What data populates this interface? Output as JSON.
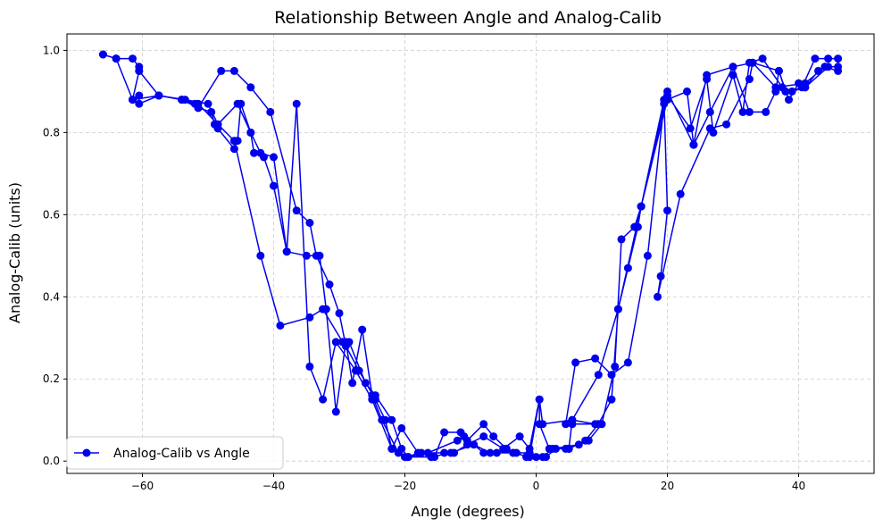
{
  "chart_data": {
    "type": "line",
    "title": "Relationship Between Angle and Analog-Calib",
    "xlabel": "Angle (degrees)",
    "ylabel": "Analog-Calib (units)",
    "xlim": [
      -71.5,
      51.5
    ],
    "ylim": [
      -0.03,
      1.04
    ],
    "x_ticks": [
      -60,
      -40,
      -20,
      0,
      20,
      40
    ],
    "x_tick_labels": [
      "−60",
      "−40",
      "−20",
      "0",
      "20",
      "40"
    ],
    "y_ticks": [
      0.0,
      0.2,
      0.4,
      0.6,
      0.8,
      1.0
    ],
    "y_tick_labels": [
      "0.0",
      "0.2",
      "0.4",
      "0.6",
      "0.8",
      "1.0"
    ],
    "grid": true,
    "legend_position": "lower-left",
    "colors": {
      "series": "#0000ee",
      "grid": "#cccccc",
      "axis": "#000000"
    },
    "series": [
      {
        "name": "Analog-Calib vs Angle",
        "marker": "circle",
        "points": [
          [
            -66,
            0.99
          ],
          [
            -64,
            0.98
          ],
          [
            -61.5,
            0.98
          ],
          [
            -60.5,
            0.96
          ],
          [
            -60.5,
            0.95
          ],
          [
            -57.5,
            0.89
          ],
          [
            -54,
            0.88
          ],
          [
            -52,
            0.87
          ],
          [
            -51.5,
            0.86
          ],
          [
            -49.5,
            0.85
          ],
          [
            -49,
            0.82
          ],
          [
            -48.5,
            0.81
          ],
          [
            -46,
            0.76
          ],
          [
            -45.5,
            0.78
          ],
          [
            -45,
            0.87
          ],
          [
            -43.5,
            0.8
          ],
          [
            -43,
            0.75
          ],
          [
            -41.5,
            0.74
          ],
          [
            -40,
            0.67
          ],
          [
            -38,
            0.51
          ],
          [
            -35,
            0.5
          ],
          [
            -33,
            0.5
          ],
          [
            -32,
            0.37
          ],
          [
            -30.5,
            0.12
          ],
          [
            -29,
            0.29
          ],
          [
            -28,
            0.19
          ],
          [
            -26.5,
            0.32
          ],
          [
            -25,
            0.16
          ],
          [
            -23.5,
            0.1
          ],
          [
            -21,
            0.02
          ],
          [
            -20,
            0.01
          ],
          [
            -17.5,
            0.02
          ],
          [
            -15.5,
            0.01
          ],
          [
            -14,
            0.07
          ],
          [
            -11.5,
            0.07
          ],
          [
            -10.5,
            0.05
          ],
          [
            -8,
            0.09
          ],
          [
            -6.5,
            0.06
          ],
          [
            -4.5,
            0.03
          ],
          [
            -3,
            0.02
          ],
          [
            -1.5,
            0.01
          ],
          [
            0,
            0.01
          ],
          [
            1.5,
            0.01
          ],
          [
            3,
            0.03
          ],
          [
            5,
            0.03
          ],
          [
            7.5,
            0.05
          ],
          [
            9.5,
            0.09
          ],
          [
            11.5,
            0.15
          ],
          [
            12.5,
            0.37
          ],
          [
            14,
            0.47
          ],
          [
            15.5,
            0.57
          ],
          [
            16,
            0.62
          ],
          [
            20,
            0.88
          ],
          [
            23,
            0.9
          ],
          [
            24,
            0.77
          ],
          [
            26,
            0.94
          ],
          [
            30,
            0.96
          ],
          [
            32.5,
            0.85
          ],
          [
            35,
            0.85
          ],
          [
            36.5,
            0.9
          ],
          [
            37,
            0.95
          ],
          [
            38.5,
            0.88
          ],
          [
            40,
            0.92
          ],
          [
            40.5,
            0.91
          ],
          [
            42.5,
            0.98
          ],
          [
            44.5,
            0.98
          ],
          [
            46,
            0.98
          ],
          [
            46,
            0.95
          ],
          [
            44,
            0.96
          ],
          [
            43,
            0.95
          ],
          [
            41,
            0.91
          ],
          [
            39,
            0.9
          ],
          [
            37.5,
            0.91
          ],
          [
            34.5,
            0.98
          ],
          [
            32.5,
            0.97
          ],
          [
            31.5,
            0.85
          ],
          [
            30,
            0.94
          ],
          [
            27,
            0.8
          ],
          [
            26,
            0.93
          ],
          [
            23.5,
            0.81
          ],
          [
            20,
            0.89
          ],
          [
            19.5,
            0.87
          ],
          [
            17,
            0.5
          ],
          [
            14,
            0.24
          ],
          [
            11.5,
            0.21
          ],
          [
            9,
            0.25
          ],
          [
            6,
            0.24
          ],
          [
            4.5,
            0.09
          ],
          [
            5.5,
            0.09
          ],
          [
            9,
            0.09
          ],
          [
            5.5,
            0.1
          ],
          [
            5,
            0.03
          ],
          [
            4.5,
            0.03
          ],
          [
            2,
            0.03
          ],
          [
            0.5,
            0.09
          ],
          [
            0.5,
            0.15
          ],
          [
            -1,
            0.03
          ],
          [
            -2.5,
            0.06
          ],
          [
            -5,
            0.03
          ],
          [
            -8,
            0.06
          ],
          [
            -10.5,
            0.04
          ],
          [
            -12.5,
            0.02
          ],
          [
            -14,
            0.02
          ],
          [
            -18,
            0.02
          ],
          [
            -20.5,
            0.08
          ],
          [
            -22,
            0.03
          ],
          [
            -23,
            0.1
          ],
          [
            -24.5,
            0.15
          ],
          [
            -27,
            0.22
          ],
          [
            -29,
            0.28
          ],
          [
            -30,
            0.36
          ],
          [
            -31.5,
            0.43
          ],
          [
            -33.5,
            0.5
          ],
          [
            -34.5,
            0.58
          ],
          [
            -36.5,
            0.61
          ],
          [
            -40.5,
            0.85
          ],
          [
            -43.5,
            0.91
          ],
          [
            -46,
            0.95
          ],
          [
            -48,
            0.95
          ],
          [
            -51.5,
            0.86
          ],
          [
            -54,
            0.88
          ],
          [
            -57.5,
            0.89
          ],
          [
            -61.5,
            0.88
          ],
          [
            -60.5,
            0.89
          ],
          [
            -60.5,
            0.87
          ],
          [
            -57.5,
            0.89
          ],
          [
            -53.5,
            0.88
          ],
          [
            -50,
            0.87
          ],
          [
            -48.5,
            0.82
          ],
          [
            -46,
            0.78
          ],
          [
            -42,
            0.5
          ],
          [
            -39,
            0.33
          ],
          [
            -34.5,
            0.35
          ],
          [
            -32.5,
            0.37
          ],
          [
            -29.5,
            0.29
          ],
          [
            -28.5,
            0.29
          ],
          [
            -26,
            0.19
          ],
          [
            -24.5,
            0.16
          ],
          [
            -22,
            0.1
          ],
          [
            -20.5,
            0.03
          ],
          [
            -19.5,
            0.01
          ],
          [
            -16.5,
            0.02
          ],
          [
            -12,
            0.05
          ],
          [
            -11,
            0.06
          ],
          [
            -8,
            0.02
          ],
          [
            -6,
            0.02
          ],
          [
            -3.5,
            0.02
          ],
          [
            -1,
            0.02
          ],
          [
            1,
            0.01
          ],
          [
            2.5,
            0.03
          ],
          [
            6.5,
            0.04
          ],
          [
            8,
            0.05
          ],
          [
            10,
            0.09
          ],
          [
            12,
            0.23
          ],
          [
            13,
            0.54
          ],
          [
            15,
            0.57
          ],
          [
            16,
            0.62
          ],
          [
            19.5,
            0.88
          ],
          [
            20,
            0.61
          ],
          [
            19,
            0.45
          ],
          [
            18.5,
            0.4
          ],
          [
            22,
            0.65
          ],
          [
            26.5,
            0.81
          ],
          [
            29,
            0.82
          ],
          [
            32.5,
            0.93
          ],
          [
            33,
            0.97
          ],
          [
            37,
            0.95
          ],
          [
            38,
            0.9
          ],
          [
            41,
            0.91
          ],
          [
            44.5,
            0.96
          ],
          [
            46,
            0.96
          ],
          [
            44,
            0.96
          ],
          [
            41,
            0.92
          ],
          [
            36.5,
            0.91
          ],
          [
            33,
            0.97
          ],
          [
            30,
            0.96
          ],
          [
            26.5,
            0.85
          ],
          [
            24,
            0.77
          ],
          [
            20,
            0.9
          ],
          [
            16,
            0.62
          ],
          [
            12.5,
            0.37
          ],
          [
            9.5,
            0.21
          ],
          [
            5.5,
            0.1
          ],
          [
            1,
            0.09
          ],
          [
            0.5,
            0.15
          ],
          [
            -1,
            0.01
          ],
          [
            -3.5,
            0.02
          ],
          [
            -7,
            0.02
          ],
          [
            -9.5,
            0.04
          ],
          [
            -13,
            0.02
          ],
          [
            -16,
            0.01
          ],
          [
            -19.5,
            0.01
          ],
          [
            -22,
            0.03
          ],
          [
            -25,
            0.15
          ],
          [
            -27.5,
            0.22
          ],
          [
            -30.5,
            0.29
          ],
          [
            -32.5,
            0.15
          ],
          [
            -34.5,
            0.23
          ],
          [
            -36.5,
            0.87
          ],
          [
            -38,
            0.51
          ],
          [
            -40,
            0.74
          ],
          [
            -42,
            0.75
          ],
          [
            -43.5,
            0.8
          ],
          [
            -45.5,
            0.87
          ],
          [
            -48.5,
            0.82
          ],
          [
            -51.5,
            0.87
          ],
          [
            -54,
            0.88
          ],
          [
            -57.5,
            0.89
          ],
          [
            -60.5,
            0.95
          ],
          [
            -61.5,
            0.88
          ],
          [
            -64,
            0.98
          ],
          [
            -66,
            0.99
          ]
        ]
      }
    ]
  }
}
